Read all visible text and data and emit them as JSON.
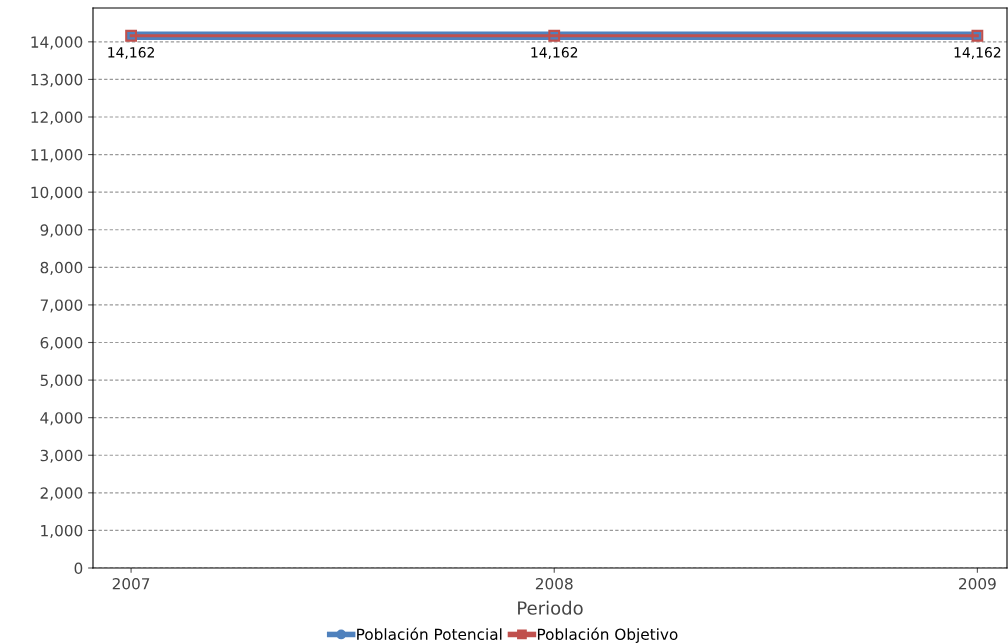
{
  "chart_data": {
    "type": "line",
    "xlabel": "Periodo",
    "x": [
      2007,
      2008,
      2009
    ],
    "series": [
      {
        "name": "Población Potencial",
        "color": "#4f81bd",
        "values": [
          14162,
          14162,
          14162
        ],
        "marker": "circle"
      },
      {
        "name": "Población Objetivo",
        "color": "#c0504d",
        "values": [
          14162,
          14162,
          14162
        ],
        "marker": "square",
        "value_labels": [
          "14,162",
          "14,162",
          "14,162"
        ]
      }
    ],
    "xlim": [
      2006.91,
      2009.07
    ],
    "xticks": [
      2007,
      2008,
      2009
    ],
    "ylim": [
      0,
      14900
    ],
    "yticks": [
      {
        "value": 0,
        "label": "0"
      },
      {
        "value": 1000,
        "label": "1,000"
      },
      {
        "value": 2000,
        "label": "2,000"
      },
      {
        "value": 3000,
        "label": "3,000"
      },
      {
        "value": 4000,
        "label": "4,000"
      },
      {
        "value": 5000,
        "label": "5,000"
      },
      {
        "value": 6000,
        "label": "6,000"
      },
      {
        "value": 7000,
        "label": "7,000"
      },
      {
        "value": 8000,
        "label": "8,000"
      },
      {
        "value": 9000,
        "label": "9,000"
      },
      {
        "value": 10000,
        "label": "10,000"
      },
      {
        "value": 11000,
        "label": "11,000"
      },
      {
        "value": 12000,
        "label": "12,000"
      },
      {
        "value": 13000,
        "label": "13,000"
      },
      {
        "value": 14000,
        "label": "14,000"
      }
    ],
    "grid": "y",
    "legend": "bottom"
  }
}
